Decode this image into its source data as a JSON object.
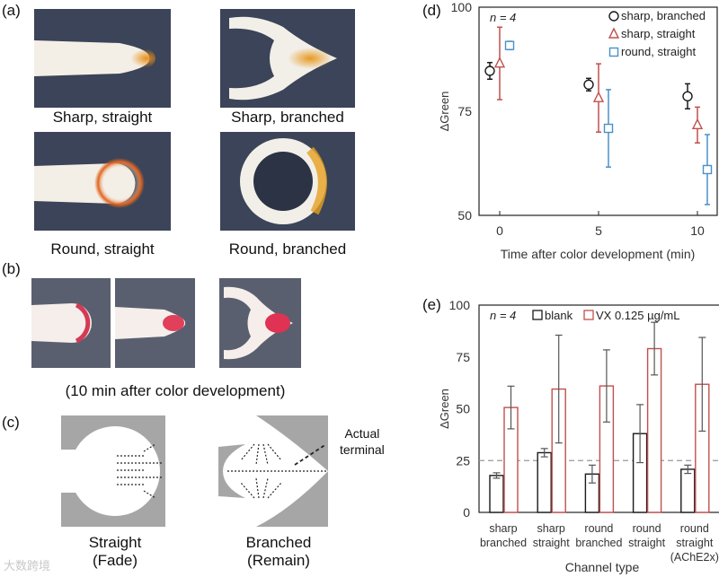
{
  "panels": {
    "a": {
      "label": "(a)",
      "images": [
        {
          "caption": "Sharp, straight"
        },
        {
          "caption": "Sharp, branched"
        },
        {
          "caption": "Round, straight"
        },
        {
          "caption": "Round, branched"
        }
      ]
    },
    "b": {
      "label": "(b)",
      "caption": "(10 min after color development)"
    },
    "c": {
      "label": "(c)",
      "straight": {
        "line1": "Straight",
        "line2": "(Fade)"
      },
      "branched": {
        "line1": "Branched",
        "line2": "(Remain)"
      },
      "annotation_line1": "Actual",
      "annotation_line2": "terminal"
    },
    "d": {
      "label": "(d)"
    },
    "e": {
      "label": "(e)"
    }
  },
  "watermark": "大数跨境",
  "colors": {
    "black": "#1a1a1a",
    "red": "#c0504d",
    "blue": "#4a90c8",
    "photo_bg": "#3b4458"
  },
  "chart_data": [
    {
      "type": "scatter",
      "panel": "d",
      "annotation": "n = 4",
      "xlabel": "Time after color development (min)",
      "ylabel": "ΔGreen",
      "xticks": [
        "0",
        "5",
        "10"
      ],
      "yticks": [
        "50",
        "75",
        "100"
      ],
      "ylim": [
        50,
        100
      ],
      "legend": "top-right",
      "series": [
        {
          "name": "sharp, branched",
          "marker": "circle",
          "color": "#1a1a1a",
          "x": [
            0,
            5,
            10
          ],
          "y": [
            84.7,
            81.4,
            78.6
          ],
          "err": [
            2.0,
            1.5,
            3.0
          ]
        },
        {
          "name": "sharp, straight",
          "marker": "triangle",
          "color": "#c0504d",
          "x": [
            0,
            5,
            10
          ],
          "y": [
            86.5,
            78.2,
            71.7
          ],
          "err": [
            8.7,
            8.2,
            4.3
          ]
        },
        {
          "name": "round, straight",
          "marker": "square",
          "color": "#4a90c8",
          "x": [
            0,
            5,
            10
          ],
          "y": [
            90.8,
            70.9,
            61.0
          ],
          "err": [
            1.0,
            9.3,
            8.4
          ]
        }
      ]
    },
    {
      "type": "bar",
      "panel": "e",
      "annotation": "n = 4",
      "xlabel": "Channel type",
      "ylabel": "ΔGreen",
      "yticks": [
        "0",
        "25",
        "50",
        "75",
        "100"
      ],
      "ylim": [
        0,
        100
      ],
      "reference_line": 25,
      "legend": "top",
      "categories": [
        [
          "sharp",
          "branched"
        ],
        [
          "sharp",
          "straight"
        ],
        [
          "round",
          "branched"
        ],
        [
          "round",
          "straight"
        ],
        [
          "round",
          "straight",
          "(AChE2x)"
        ]
      ],
      "series": [
        {
          "name": "blank",
          "color": "#1a1a1a",
          "values": [
            17.8,
            28.8,
            18.5,
            38.0,
            20.8
          ],
          "err": [
            1.3,
            2.0,
            4.3,
            14.0,
            2.0
          ]
        },
        {
          "name": "VX 0.125 µg/mL",
          "color": "#c0504d",
          "values": [
            50.6,
            59.5,
            61.0,
            79.0,
            61.8
          ],
          "err": [
            10.3,
            26.0,
            17.4,
            12.7,
            22.6
          ]
        }
      ]
    }
  ]
}
